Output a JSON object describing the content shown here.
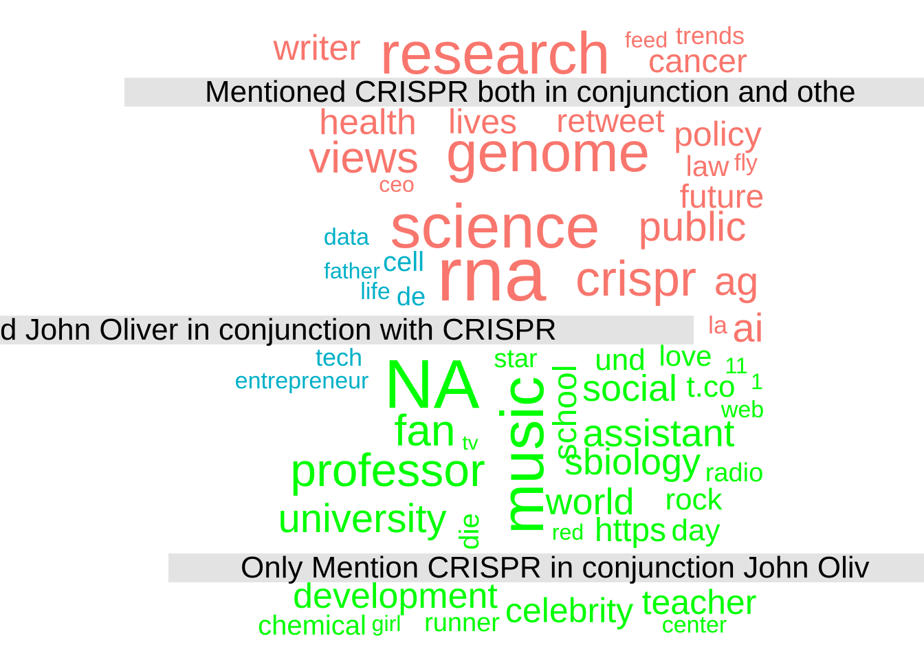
{
  "group_labels": {
    "top": "Mentioned CRISPR both in conjunction and othe",
    "middle": "d John Oliver in conjunction with CRISPR",
    "bottom": "Only Mention CRISPR in conjunction John Oliv"
  },
  "colors": {
    "group1": "#f8766d",
    "group2": "#00b0c8",
    "group3": "#00ff00",
    "label_bg": "#e3e3e3"
  },
  "words": [
    {
      "text": "writer",
      "group": 1
    },
    {
      "text": "research",
      "group": 1
    },
    {
      "text": "feed",
      "group": 1
    },
    {
      "text": "trends",
      "group": 1
    },
    {
      "text": "cancer",
      "group": 1
    },
    {
      "text": "health",
      "group": 1
    },
    {
      "text": "lives",
      "group": 1
    },
    {
      "text": "retweet",
      "group": 1
    },
    {
      "text": "policy",
      "group": 1
    },
    {
      "text": "views",
      "group": 1
    },
    {
      "text": "genome",
      "group": 1
    },
    {
      "text": "law",
      "group": 1
    },
    {
      "text": "fly",
      "group": 1
    },
    {
      "text": "ceo",
      "group": 1
    },
    {
      "text": "future",
      "group": 1
    },
    {
      "text": "science",
      "group": 1
    },
    {
      "text": "public",
      "group": 1
    },
    {
      "text": "rna",
      "group": 1
    },
    {
      "text": "crispr",
      "group": 1
    },
    {
      "text": "ag",
      "group": 1
    },
    {
      "text": "la",
      "group": 1
    },
    {
      "text": "ai",
      "group": 1
    },
    {
      "text": "data",
      "group": 2
    },
    {
      "text": "cell",
      "group": 2
    },
    {
      "text": "father",
      "group": 2
    },
    {
      "text": "life",
      "group": 2
    },
    {
      "text": "de",
      "group": 2
    },
    {
      "text": "tech",
      "group": 2
    },
    {
      "text": "entrepreneur",
      "group": 2
    },
    {
      "text": "NA",
      "group": 3
    },
    {
      "text": "music",
      "group": 3
    },
    {
      "text": "school",
      "group": 3
    },
    {
      "text": "star",
      "group": 3
    },
    {
      "text": "und",
      "group": 3
    },
    {
      "text": "love",
      "group": 3
    },
    {
      "text": "11",
      "group": 3
    },
    {
      "text": "social",
      "group": 3
    },
    {
      "text": "t.co",
      "group": 3
    },
    {
      "text": "1",
      "group": 3
    },
    {
      "text": "web",
      "group": 3
    },
    {
      "text": "fan",
      "group": 3
    },
    {
      "text": "tv",
      "group": 3
    },
    {
      "text": "assistant",
      "group": 3
    },
    {
      "text": "sbiology",
      "group": 3
    },
    {
      "text": "professor",
      "group": 3
    },
    {
      "text": "radio",
      "group": 3
    },
    {
      "text": "world",
      "group": 3
    },
    {
      "text": "rock",
      "group": 3
    },
    {
      "text": "university",
      "group": 3
    },
    {
      "text": "die",
      "group": 3
    },
    {
      "text": "red",
      "group": 3
    },
    {
      "text": "https",
      "group": 3
    },
    {
      "text": "day",
      "group": 3
    },
    {
      "text": "development",
      "group": 3
    },
    {
      "text": "celebrity",
      "group": 3
    },
    {
      "text": "teacher",
      "group": 3
    },
    {
      "text": "chemical",
      "group": 3
    },
    {
      "text": "girl",
      "group": 3
    },
    {
      "text": "runner",
      "group": 3
    },
    {
      "text": "center",
      "group": 3
    }
  ]
}
